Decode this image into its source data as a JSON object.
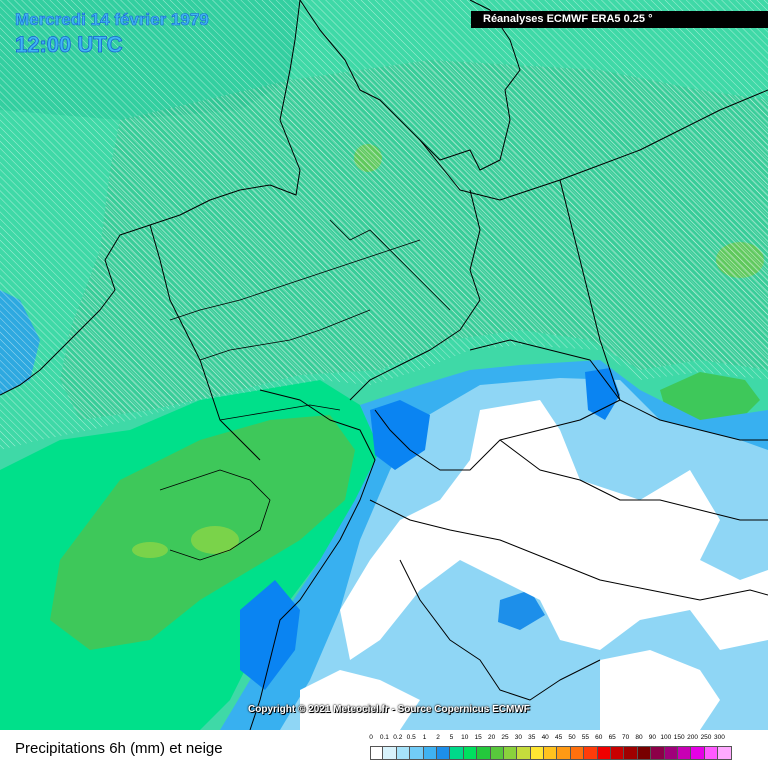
{
  "header": {
    "date": "Mercredi 14 février 1979",
    "time": "12:00 UTC",
    "source": "Réanalyses ECMWF ERA5 0.25 °"
  },
  "map": {
    "copyright": "Copyright © 2021 Meteociel.fr - Source Copernicus ECMWF",
    "colors": {
      "sea_teal": "#3fd9a7",
      "rain_light_green": "#00e58a",
      "rain_green": "#3ec85a",
      "rain_yellow_green": "#7ad34a",
      "rain_light_blue": "#8fd6f5",
      "rain_blue": "#38b0f0",
      "rain_deep_blue": "#0a84f2",
      "dry_white": "#ffffff",
      "border_black": "#000000",
      "snow_hatch": "#ffffff"
    }
  },
  "footer": {
    "title": "Precipitations 6h (mm) et neige"
  },
  "legend": {
    "labels": [
      "0",
      "0.1",
      "0.2",
      "0.5",
      "1",
      "2",
      "5",
      "10",
      "15",
      "20",
      "25",
      "30",
      "35",
      "40",
      "45",
      "50",
      "55",
      "60",
      "65",
      "70",
      "80",
      "90",
      "100",
      "150",
      "200",
      "250",
      "300"
    ],
    "colors": [
      "#ffffff",
      "#d8f3fc",
      "#a6e3fa",
      "#72ccf7",
      "#3fb2f2",
      "#1d8fea",
      "#00d98a",
      "#00e05f",
      "#24c83c",
      "#58c83c",
      "#8ad23c",
      "#c6dc3c",
      "#ffe632",
      "#ffc21e",
      "#ff9a14",
      "#ff700e",
      "#ff3c0a",
      "#f00000",
      "#c80000",
      "#a00000",
      "#780000",
      "#8c0048",
      "#a0007a",
      "#c800b4",
      "#e600e6",
      "#ff5aff",
      "#ffaaff"
    ]
  }
}
